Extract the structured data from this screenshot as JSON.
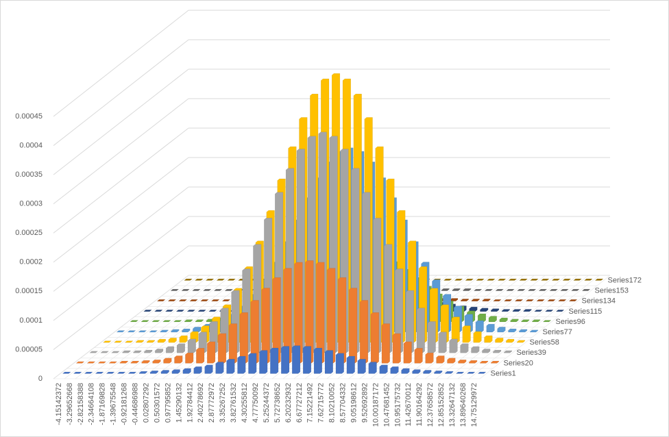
{
  "chart_data": {
    "type": "bar3d",
    "categories": [
      "-4.15142372",
      "-3.29652668",
      "-2.82158388",
      "-2.34664108",
      "-1.87169828",
      "-1.39675548",
      "-0.92181268",
      "-0.44686988",
      "0.02807292",
      "0.50301572",
      "0.97795852",
      "1.45290132",
      "1.92784412",
      "2.40278692",
      "2.87772972",
      "3.35267252",
      "3.82761532",
      "4.30255812",
      "4.77750092",
      "5.25244372",
      "5.72738652",
      "6.20232932",
      "6.67727212",
      "7.15221492",
      "7.62715772",
      "8.10210052",
      "8.57704332",
      "9.05198612",
      "9.52692892",
      "10.00187172",
      "10.47681452",
      "10.95175732",
      "11.42670012",
      "11.90164292",
      "12.37658572",
      "12.85152852",
      "13.32647132",
      "13.89640268",
      "14.75129972"
    ],
    "series": [
      {
        "name": "Series1",
        "color": "#4472c4",
        "values": [
          0,
          0,
          0,
          0,
          0,
          0,
          0,
          1e-06,
          2e-06,
          3e-06,
          4e-06,
          6e-06,
          9e-06,
          1.2e-05,
          1.7e-05,
          2.2e-05,
          2.7e-05,
          3.2e-05,
          3.7e-05,
          4.1e-05,
          4.4e-05,
          4.5e-05,
          4.4e-05,
          4.1e-05,
          3.7e-05,
          3.2e-05,
          2.7e-05,
          2.2e-05,
          1.7e-05,
          1.2e-05,
          9e-06,
          6e-06,
          4e-06,
          3e-06,
          2e-06,
          1e-06,
          0,
          0,
          0
        ]
      },
      {
        "name": "Series20",
        "color": "#ed7d31",
        "values": [
          0,
          0,
          0,
          0,
          1e-06,
          1e-06,
          2e-06,
          3e-06,
          6e-06,
          1e-05,
          1.5e-05,
          2.3e-05,
          3.4e-05,
          4.8e-05,
          6.5e-05,
          8.4e-05,
          0.000105,
          0.000126,
          0.000144,
          0.00016,
          0.00017,
          0.000173,
          0.00017,
          0.00016,
          0.000144,
          0.000126,
          0.000105,
          8.4e-05,
          6.5e-05,
          4.8e-05,
          3.4e-05,
          2.3e-05,
          1.5e-05,
          1e-05,
          6e-06,
          3e-06,
          2e-06,
          1e-06,
          1e-06
        ]
      },
      {
        "name": "Series39",
        "color": "#a5a5a5",
        "values": [
          0,
          0,
          0,
          1e-06,
          1e-06,
          2e-06,
          4e-06,
          8e-06,
          1.3e-05,
          2.1e-05,
          3.3e-05,
          5.1e-05,
          7.4e-05,
          0.000104,
          0.000141,
          0.000183,
          0.000228,
          0.000272,
          0.000313,
          0.000346,
          0.000368,
          0.000375,
          0.000368,
          0.000346,
          0.000313,
          0.000272,
          0.000228,
          0.000183,
          0.000141,
          0.000104,
          7.4e-05,
          5.1e-05,
          3.3e-05,
          2.1e-05,
          1.3e-05,
          8e-06,
          4e-06,
          2e-06,
          1e-06
        ]
      },
      {
        "name": "Series58",
        "color": "#ffc000",
        "values": [
          0,
          0,
          0,
          1e-06,
          1e-06,
          3e-06,
          5e-06,
          9e-06,
          1.6e-05,
          2.6e-05,
          4.1e-05,
          6.2e-05,
          9e-05,
          0.000127,
          0.000171,
          0.000223,
          0.000277,
          0.000332,
          0.000382,
          0.000422,
          0.000448,
          0.000457,
          0.000448,
          0.000422,
          0.000382,
          0.000332,
          0.000277,
          0.000223,
          0.000171,
          0.000127,
          9e-05,
          6.2e-05,
          4.1e-05,
          2.6e-05,
          1.6e-05,
          9e-06,
          5e-06,
          3e-06,
          1e-06
        ]
      },
      {
        "name": "Series77",
        "color": "#5b9bd5",
        "values": [
          0,
          0,
          0,
          0,
          1e-06,
          2e-06,
          3e-06,
          6e-06,
          1.1e-05,
          1.7e-05,
          2.8e-05,
          4.2e-05,
          6.2e-05,
          8.7e-05,
          0.000117,
          0.000152,
          0.000189,
          0.000227,
          0.000261,
          0.000288,
          0.000306,
          0.000312,
          0.000306,
          0.000288,
          0.000261,
          0.000227,
          0.000189,
          0.000152,
          0.000117,
          8.7e-05,
          6.2e-05,
          4.2e-05,
          2.8e-05,
          1.7e-05,
          1.1e-05,
          6e-06,
          3e-06,
          2e-06,
          1e-06
        ]
      },
      {
        "name": "Series96",
        "color": "#70ad47",
        "values": [
          0,
          0,
          0,
          0,
          0,
          1e-06,
          1e-06,
          2e-06,
          4e-06,
          7e-06,
          1.1e-05,
          1.6e-05,
          2.4e-05,
          3.3e-05,
          4.5e-05,
          5.8e-05,
          7.3e-05,
          8.7e-05,
          0.0001,
          0.000111,
          0.000118,
          0.00012,
          0.000118,
          0.000111,
          0.0001,
          8.7e-05,
          7.3e-05,
          5.8e-05,
          4.5e-05,
          3.3e-05,
          2.4e-05,
          1.6e-05,
          1.1e-05,
          7e-06,
          4e-06,
          2e-06,
          1e-06,
          1e-06,
          0
        ]
      },
      {
        "name": "Series115",
        "color": "#264478",
        "values": [
          0,
          0,
          0,
          0,
          0,
          0,
          0,
          1e-06,
          1e-06,
          1e-06,
          2e-06,
          3e-06,
          5e-06,
          7e-06,
          1e-05,
          1.3e-05,
          1.6e-05,
          1.9e-05,
          2.2e-05,
          2.4e-05,
          2.5e-05,
          2.6e-05,
          2.5e-05,
          2.4e-05,
          2.2e-05,
          1.9e-05,
          1.6e-05,
          1.3e-05,
          1e-05,
          7e-06,
          5e-06,
          3e-06,
          2e-06,
          1e-06,
          1e-06,
          1e-06,
          0,
          0,
          0
        ]
      },
      {
        "name": "Series134",
        "color": "#9e480e",
        "values": [
          0,
          0,
          0,
          0,
          0,
          0,
          0,
          0,
          0,
          0,
          0,
          0,
          1e-06,
          1e-06,
          1e-06,
          2e-06,
          2e-06,
          2e-06,
          3e-06,
          3e-06,
          3e-06,
          3e-06,
          3e-06,
          3e-06,
          3e-06,
          2e-06,
          2e-06,
          2e-06,
          1e-06,
          1e-06,
          1e-06,
          0,
          0,
          0,
          0,
          0,
          0,
          0,
          0
        ]
      },
      {
        "name": "Series153",
        "color": "#636363",
        "values": [
          0,
          0,
          0,
          0,
          0,
          0,
          0,
          0,
          0,
          0,
          0,
          0,
          0,
          0,
          0,
          1e-06,
          1e-06,
          1e-06,
          1e-06,
          1e-06,
          1e-06,
          1e-06,
          1e-06,
          1e-06,
          1e-06,
          1e-06,
          1e-06,
          1e-06,
          0,
          0,
          0,
          0,
          0,
          0,
          0,
          0,
          0,
          0,
          0
        ]
      },
      {
        "name": "Series172",
        "color": "#997300",
        "values": [
          0,
          0,
          0,
          0,
          0,
          0,
          0,
          0,
          0,
          0,
          0,
          0,
          0,
          0,
          0,
          0,
          0,
          0,
          0,
          0,
          0,
          0,
          0,
          0,
          0,
          0,
          0,
          0,
          0,
          0,
          0,
          0,
          0,
          0,
          0,
          0,
          0,
          0,
          0
        ]
      }
    ],
    "ylim": [
      0,
      0.00045
    ],
    "yticks": [
      0,
      5e-05,
      0.0001,
      0.00015,
      0.0002,
      0.00025,
      0.0003,
      0.00035,
      0.0004,
      0.00045
    ],
    "grid": true
  }
}
